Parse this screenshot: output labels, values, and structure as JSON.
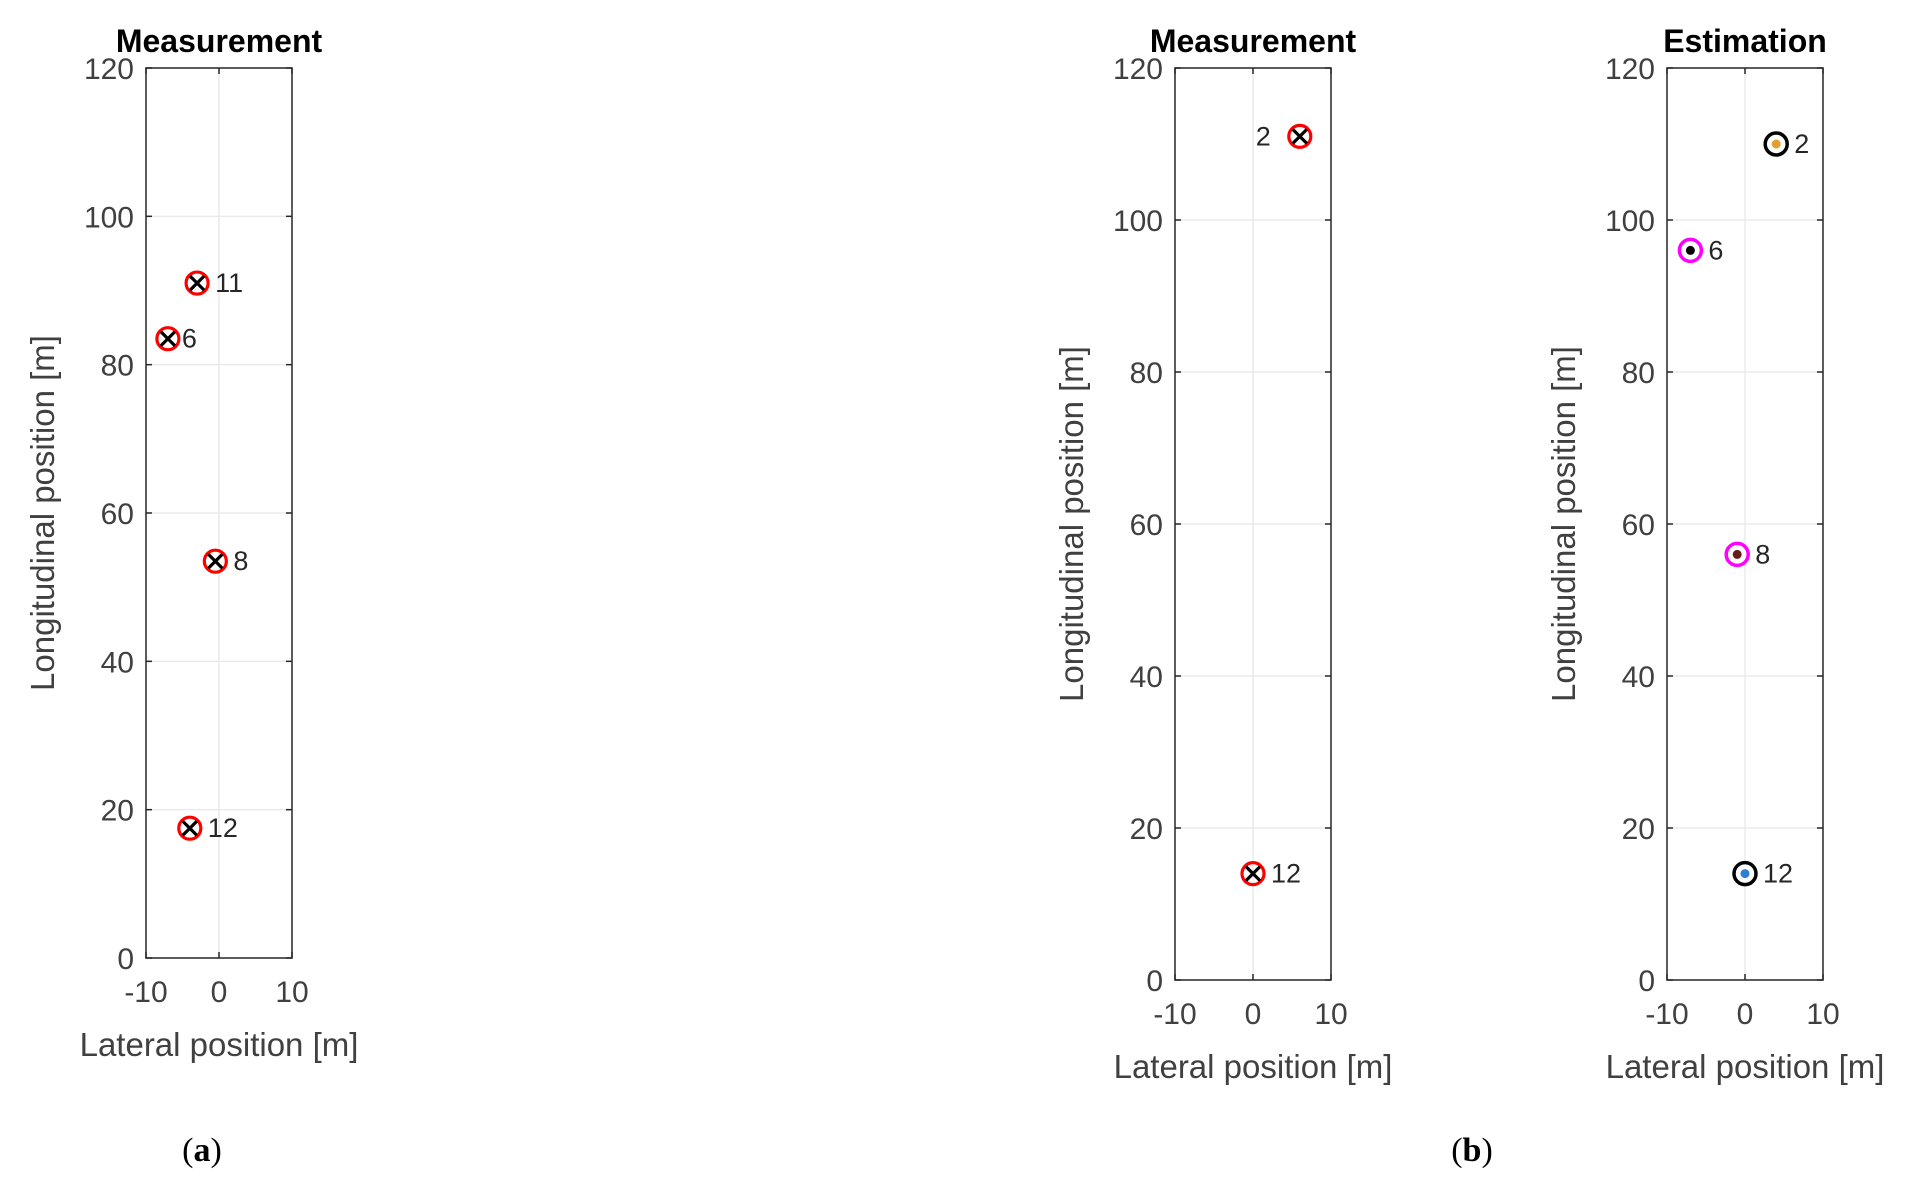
{
  "chart_data": [
    {
      "panel": "(a)",
      "type": "scatter",
      "title": "Measurement",
      "xlabel": "Lateral position [m]",
      "ylabel": "Longitudinal position [m]",
      "xlim": [
        -10,
        10
      ],
      "ylim": [
        0,
        120
      ],
      "xticks": [
        -10,
        0,
        10
      ],
      "yticks": [
        0,
        20,
        40,
        60,
        80,
        100,
        120
      ],
      "grid": true,
      "marker": "red circle with black x",
      "points": [
        {
          "label": "11",
          "x": -3,
          "y": 91
        },
        {
          "label": "6",
          "x": -7,
          "y": 83.5
        },
        {
          "label": "8",
          "x": -0.5,
          "y": 53.5
        },
        {
          "label": "12",
          "x": -4,
          "y": 17.5
        }
      ]
    },
    {
      "panel": "(b)",
      "type": "scatter",
      "title": "Measurement",
      "xlabel": "Lateral position [m]",
      "ylabel": "Longitudinal position [m]",
      "xlim": [
        -10,
        10
      ],
      "ylim": [
        0,
        120
      ],
      "xticks": [
        -10,
        0,
        10
      ],
      "yticks": [
        0,
        20,
        40,
        60,
        80,
        100,
        120
      ],
      "grid": true,
      "marker": "red circle with black x",
      "points": [
        {
          "label": "2",
          "x": 6,
          "y": 111
        },
        {
          "label": "12",
          "x": 0,
          "y": 14
        }
      ]
    },
    {
      "panel": "(b)",
      "type": "scatter",
      "title": "Estimation",
      "xlabel": "Lateral position [m]",
      "ylabel": "Longitudinal position [m]",
      "xlim": [
        -10,
        10
      ],
      "ylim": [
        0,
        120
      ],
      "xticks": [
        -10,
        0,
        10
      ],
      "yticks": [
        0,
        20,
        40,
        60,
        80,
        100,
        120
      ],
      "grid": true,
      "marker": "ring with colored center dot",
      "points": [
        {
          "label": "2",
          "x": 4,
          "y": 110,
          "ring": "#000000",
          "dot": "#e0a030"
        },
        {
          "label": "6",
          "x": -7,
          "y": 96,
          "ring": "#ff00ff",
          "dot": "#000000"
        },
        {
          "label": "8",
          "x": -1,
          "y": 56,
          "ring": "#ff00ff",
          "dot": "#6a1a1a"
        },
        {
          "label": "12",
          "x": 0,
          "y": 14,
          "ring": "#000000",
          "dot": "#2f7fd0"
        }
      ]
    }
  ],
  "captions": {
    "a": "a",
    "b": "b"
  },
  "colors": {
    "axis": "#262626",
    "grid": "#e6e6e6",
    "tick_text": "#404040",
    "measurement_ring": "#ff0000"
  }
}
